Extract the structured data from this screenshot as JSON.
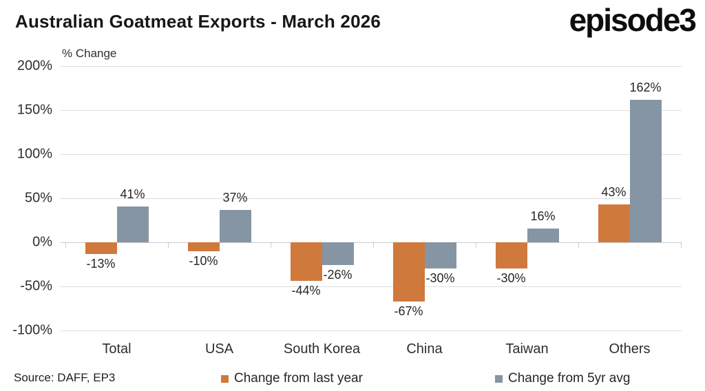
{
  "header": {
    "title": "Australian Goatmeat Exports - March 2026",
    "logo": "episode3"
  },
  "chart_data": {
    "type": "bar",
    "title": "Australian Goatmeat Exports - March 2026",
    "ylabel": "% Change",
    "categories": [
      "Total",
      "USA",
      "South Korea",
      "China",
      "Taiwan",
      "Others"
    ],
    "series": [
      {
        "name": "Change from last year",
        "color": "#d0793c",
        "values": [
          -13,
          -10,
          -44,
          -67,
          -30,
          43
        ]
      },
      {
        "name": "Change from 5yr avg",
        "color": "#8595a4",
        "values": [
          41,
          37,
          -26,
          -30,
          16,
          162
        ]
      }
    ],
    "ylim": [
      -100,
      200
    ],
    "yticks": [
      200,
      150,
      100,
      50,
      0,
      -50,
      -100
    ],
    "ytick_suffix": "%",
    "grid": true,
    "value_labels": true,
    "legend_position": "bottom"
  },
  "footer": {
    "source": "Source: DAFF, EP3"
  },
  "colors": {
    "grid": "#dcdddf",
    "axis": "#c9cbcd",
    "title_text": "#171717",
    "body_text": "#2e2e2e"
  }
}
